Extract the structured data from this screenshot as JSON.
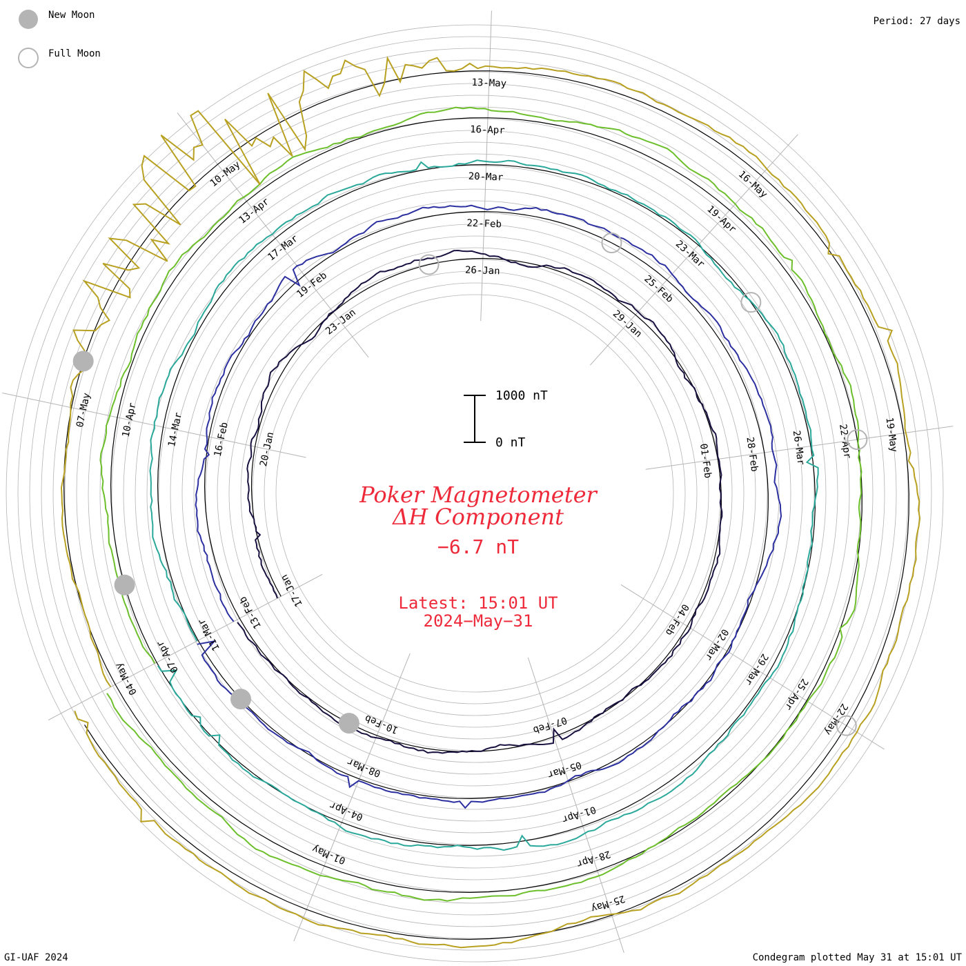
{
  "legend": {
    "new_moon": "New Moon",
    "full_moon": "Full Moon"
  },
  "period": "Period: 27 days",
  "footer": {
    "left": "GI-UAF 2024",
    "right": "Condegram plotted May 31 at 15:01 UT"
  },
  "title": {
    "line1": "Poker Magnetometer",
    "line2": "ΔH Component",
    "value": "−6.7 nT",
    "latest": "Latest: 15:01 UT",
    "date": "2024−May−31"
  },
  "scale_bar": {
    "top_label": "1000 nT",
    "bottom_label": "0 nT"
  },
  "colors": {
    "title": "#ee2a3a",
    "grid": "#b4b4b4",
    "baseline": "#000000",
    "moon_new": "#b4b4b4",
    "moon_full": "#b4b4b4"
  },
  "chart_data": {
    "type": "line",
    "period_days": 27,
    "units": "nT",
    "start_date": "2024-Jan-17",
    "end_date": "2024-May-31",
    "ring_series": [
      {
        "color": "#1a1040",
        "days": [
          "17-Jan",
          "20-Jan",
          "23-Jan",
          "26-Jan",
          "29-Jan",
          "01-Feb",
          "04-Feb",
          "07-Feb",
          "10-Feb"
        ]
      },
      {
        "color": "#2b2fa0",
        "days": [
          "13-Feb",
          "16-Feb",
          "19-Feb",
          "22-Feb",
          "25-Feb",
          "28-Feb",
          "02-Mar",
          "05-Mar",
          "08-Mar"
        ]
      },
      {
        "color": "#2aa89a",
        "days": [
          "11-Mar",
          "14-Mar",
          "17-Mar",
          "20-Mar",
          "23-Mar",
          "26-Mar",
          "29-Mar",
          "01-Apr",
          "04-Apr"
        ]
      },
      {
        "color": "#6cbf2a",
        "days": [
          "07-Apr",
          "10-Apr",
          "13-Apr",
          "16-Apr",
          "19-Apr",
          "22-Apr",
          "25-Apr",
          "28-Apr",
          "01-May"
        ]
      },
      {
        "color": "#b8a020",
        "days": [
          "04-May",
          "07-May",
          "10-May",
          "13-May",
          "16-May",
          "19-May",
          "22-May",
          "25-May"
        ]
      },
      {
        "color": "#c02010",
        "days": []
      }
    ],
    "new_moons": [
      "10-Feb",
      "10-Mar",
      "08-Apr",
      "08-May"
    ],
    "full_moons": [
      "25-Jan",
      "24-Feb",
      "25-Mar",
      "23-Apr",
      "23-May"
    ],
    "storm": {
      "date": "10-May",
      "peak_excursion_nT": 2500
    }
  }
}
